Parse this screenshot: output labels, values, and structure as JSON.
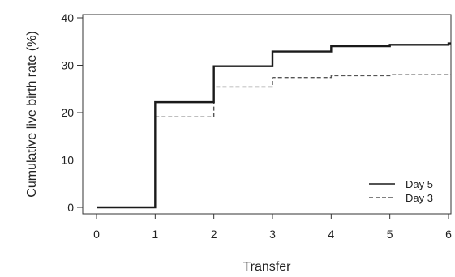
{
  "chart_data": {
    "type": "line",
    "step": true,
    "xlabel": "Transfer",
    "ylabel": "Cumulative live birth rate (%)",
    "xlim": [
      0,
      6
    ],
    "ylim": [
      0,
      40
    ],
    "xticks": [
      "0",
      "1",
      "2",
      "3",
      "4",
      "5",
      "6"
    ],
    "yticks": [
      "0",
      "10",
      "20",
      "30",
      "40"
    ],
    "grid": false,
    "legend_position": "bottom-right",
    "series": [
      {
        "name": "Day 5",
        "line_style": "solid",
        "color": "#1a1a1a",
        "x": [
          0,
          1,
          2,
          3,
          4,
          5,
          6
        ],
        "y": [
          0,
          22.2,
          29.8,
          32.9,
          34.0,
          34.3,
          34.6
        ]
      },
      {
        "name": "Day 3",
        "line_style": "dashed",
        "color": "#555555",
        "x": [
          0,
          1,
          2,
          3,
          4,
          5,
          6
        ],
        "y": [
          0,
          19.1,
          25.4,
          27.4,
          27.8,
          28.0,
          28.0
        ]
      }
    ]
  }
}
